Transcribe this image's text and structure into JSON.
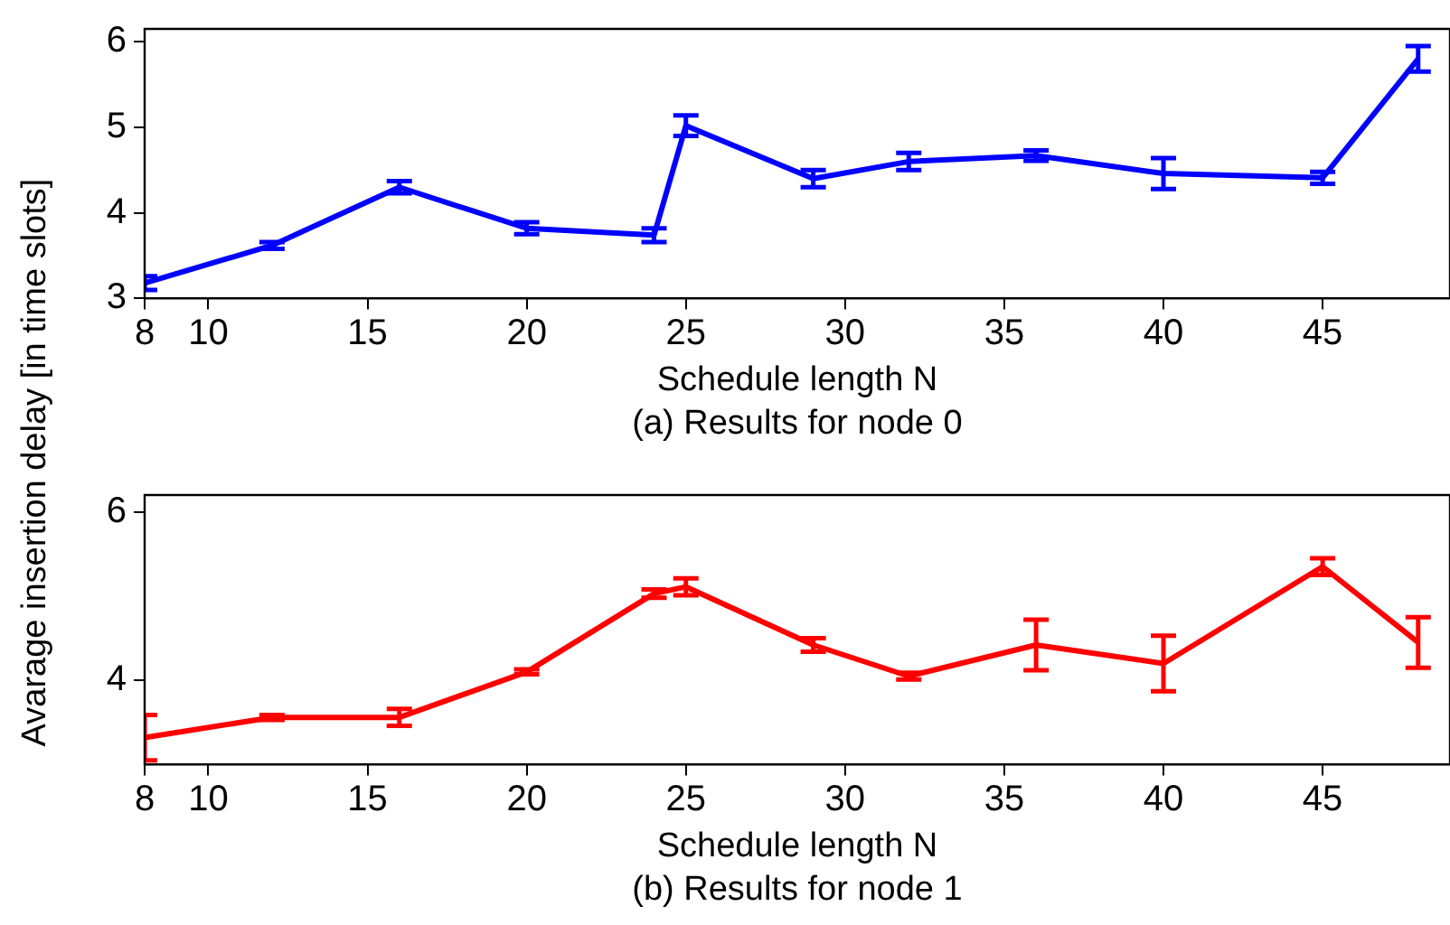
{
  "chart_data": [
    {
      "type": "line",
      "xlabel": "Schedule length N",
      "ylabel": "Avarage insertion delay [in time slots]",
      "annotations": [
        "(a) Results for node 0"
      ],
      "x": [
        8,
        12,
        16,
        20,
        24,
        25,
        29,
        32,
        36,
        40,
        45,
        48
      ],
      "series": [
        {
          "color": "#0000ff",
          "values": [
            3.18,
            3.62,
            4.3,
            3.82,
            3.74,
            5.02,
            4.4,
            4.6,
            4.67,
            4.46,
            4.41,
            5.8
          ],
          "errors": [
            0.08,
            0.04,
            0.07,
            0.07,
            0.08,
            0.12,
            0.1,
            0.1,
            0.06,
            0.18,
            0.07,
            0.15
          ]
        }
      ],
      "xlim": [
        8,
        49
      ],
      "xticks": [
        8,
        10,
        15,
        20,
        25,
        30,
        35,
        40,
        45
      ],
      "ylim": [
        3,
        6.15
      ],
      "yticks": [
        3,
        4,
        5,
        6
      ],
      "grid": false,
      "legend": false,
      "marker": "none",
      "line_style": "solid"
    },
    {
      "type": "line",
      "xlabel": "Schedule length N",
      "annotations": [
        "(b) Results for node 1"
      ],
      "x": [
        8,
        12,
        16,
        20,
        24,
        25,
        29,
        32,
        36,
        40,
        45,
        48
      ],
      "series": [
        {
          "color": "#ff0000",
          "values": [
            3.32,
            3.56,
            3.56,
            4.1,
            5.03,
            5.11,
            4.42,
            4.05,
            4.42,
            4.2,
            5.35,
            4.45
          ],
          "errors": [
            0.27,
            0.03,
            0.1,
            0.03,
            0.05,
            0.1,
            0.08,
            0.04,
            0.3,
            0.33,
            0.1,
            0.3
          ]
        }
      ],
      "xlim": [
        8,
        49
      ],
      "xticks": [
        8,
        10,
        15,
        20,
        25,
        30,
        35,
        40,
        45
      ],
      "ylim": [
        3,
        6.2
      ],
      "yticks": [
        4,
        6
      ],
      "grid": false,
      "legend": false,
      "marker": "none",
      "line_style": "solid"
    }
  ]
}
